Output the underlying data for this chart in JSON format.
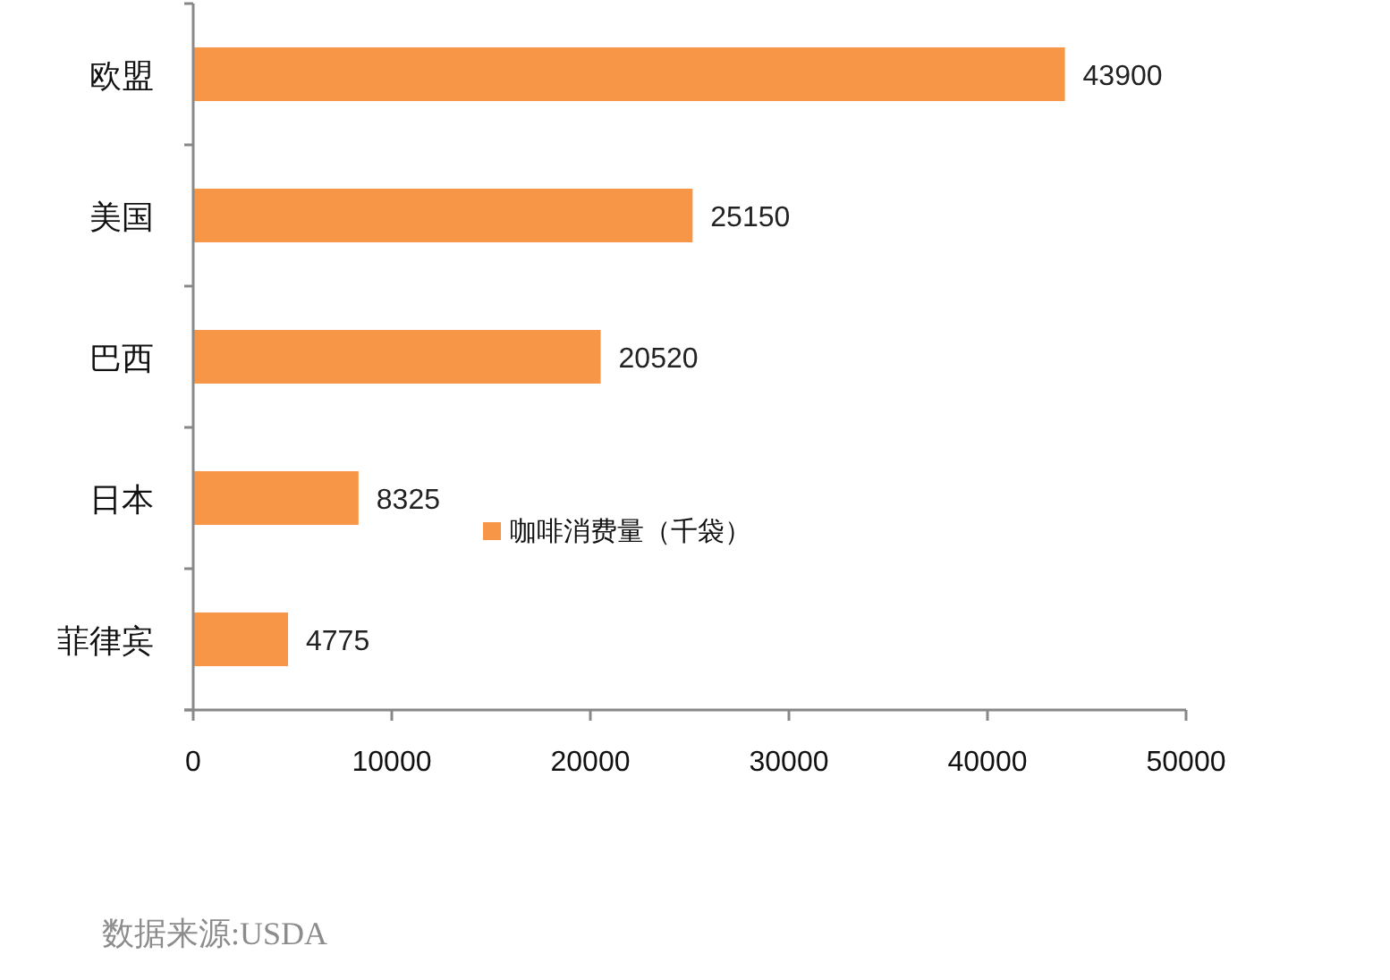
{
  "chart_data": {
    "type": "bar",
    "orientation": "horizontal",
    "categories": [
      "欧盟",
      "美国",
      "巴西",
      "日本",
      "菲律宾"
    ],
    "series": [
      {
        "name": "咖啡消费量（千袋）",
        "color": "#f79646",
        "values": [
          43900,
          25150,
          20520,
          8325,
          4775
        ]
      }
    ],
    "data_labels": true,
    "xlim": [
      0,
      50000
    ],
    "xticks": [
      0,
      10000,
      20000,
      30000,
      40000,
      50000
    ],
    "grid": false,
    "legend": "center",
    "annotations": [
      "数据来源:USDA"
    ]
  }
}
